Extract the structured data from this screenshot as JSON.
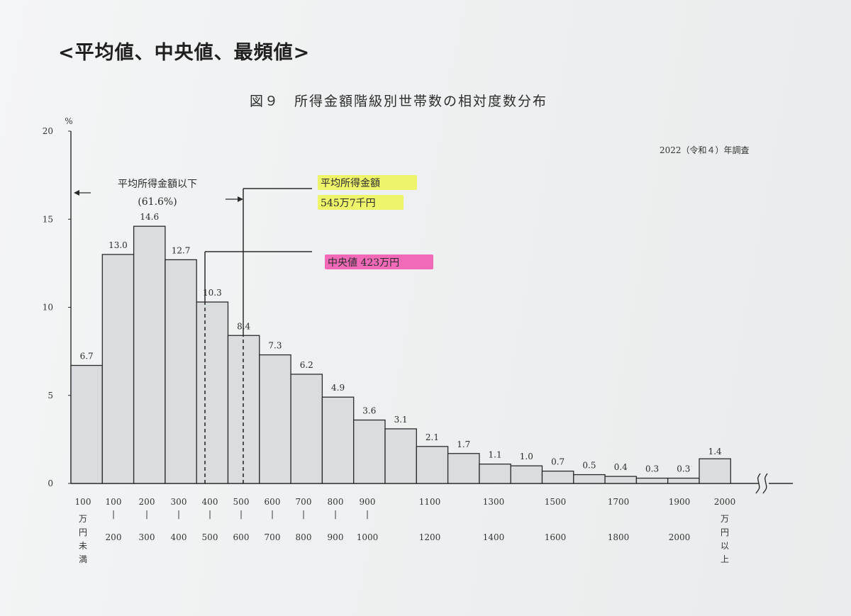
{
  "heading": "<平均値、中央値、最頻値>",
  "chart_data": {
    "type": "bar",
    "title": "図９　所得金額階級別世帯数の相対度数分布",
    "note": "2022（令和４）年調査",
    "ylabel": "%",
    "ylim": [
      0,
      20
    ],
    "yticks": [
      "0",
      "5",
      "10",
      "15",
      "20"
    ],
    "categories": [
      "100万円未満",
      "100-200",
      "200-300",
      "300-400",
      "400-500",
      "500-600",
      "600-700",
      "700-800",
      "800-900",
      "900-1000",
      "1000-1100",
      "1100-1200",
      "1200-1300",
      "1300-1400",
      "1400-1500",
      "1500-1600",
      "1600-1700",
      "1700-1800",
      "1800-1900",
      "1900-2000",
      "2000万円以上"
    ],
    "values": [
      6.7,
      13.0,
      14.6,
      12.7,
      10.3,
      8.4,
      7.3,
      6.2,
      4.9,
      3.6,
      3.1,
      2.1,
      1.7,
      1.1,
      1.0,
      0.7,
      0.5,
      0.4,
      0.3,
      0.3,
      1.4
    ],
    "value_labels": [
      "6.7",
      "13.0",
      "14.6",
      "12.7",
      "10.3",
      "8.4",
      "7.3",
      "6.2",
      "4.9",
      "3.6",
      "3.1",
      "2.1",
      "1.7",
      "1.1",
      "1.0",
      "0.7",
      "0.5",
      "0.4",
      "0.3",
      "0.3",
      "1.4"
    ],
    "x_tick_labels": [
      {
        "top": "100",
        "vertical": "万円未満"
      },
      {
        "top": "100",
        "bottom": "200"
      },
      {
        "top": "200",
        "bottom": "300"
      },
      {
        "top": "300",
        "bottom": "400"
      },
      {
        "top": "400",
        "bottom": "500"
      },
      {
        "top": "500",
        "bottom": "600"
      },
      {
        "top": "600",
        "bottom": "700"
      },
      {
        "top": "700",
        "bottom": "800"
      },
      {
        "top": "800",
        "bottom": "900"
      },
      {
        "top": "900",
        "bottom": "1000"
      },
      {
        "top": "1100",
        "bottom": "1200"
      },
      {
        "top": "1300",
        "bottom": "1400"
      },
      {
        "top": "1500",
        "bottom": "1600"
      },
      {
        "top": "1700",
        "bottom": "1800"
      },
      {
        "top": "1900",
        "bottom": "2000"
      },
      {
        "top": "2000",
        "vertical": "万円以上"
      }
    ],
    "annotations": {
      "below_mean_label": "平均所得金額以下",
      "below_mean_value": "(61.6%)",
      "mean_label": "平均所得金額",
      "mean_value": "545万7千円",
      "median_label": "中央値  423万円",
      "highlight_mean": "#eef56a",
      "highlight_median": "#f06ab8"
    }
  }
}
